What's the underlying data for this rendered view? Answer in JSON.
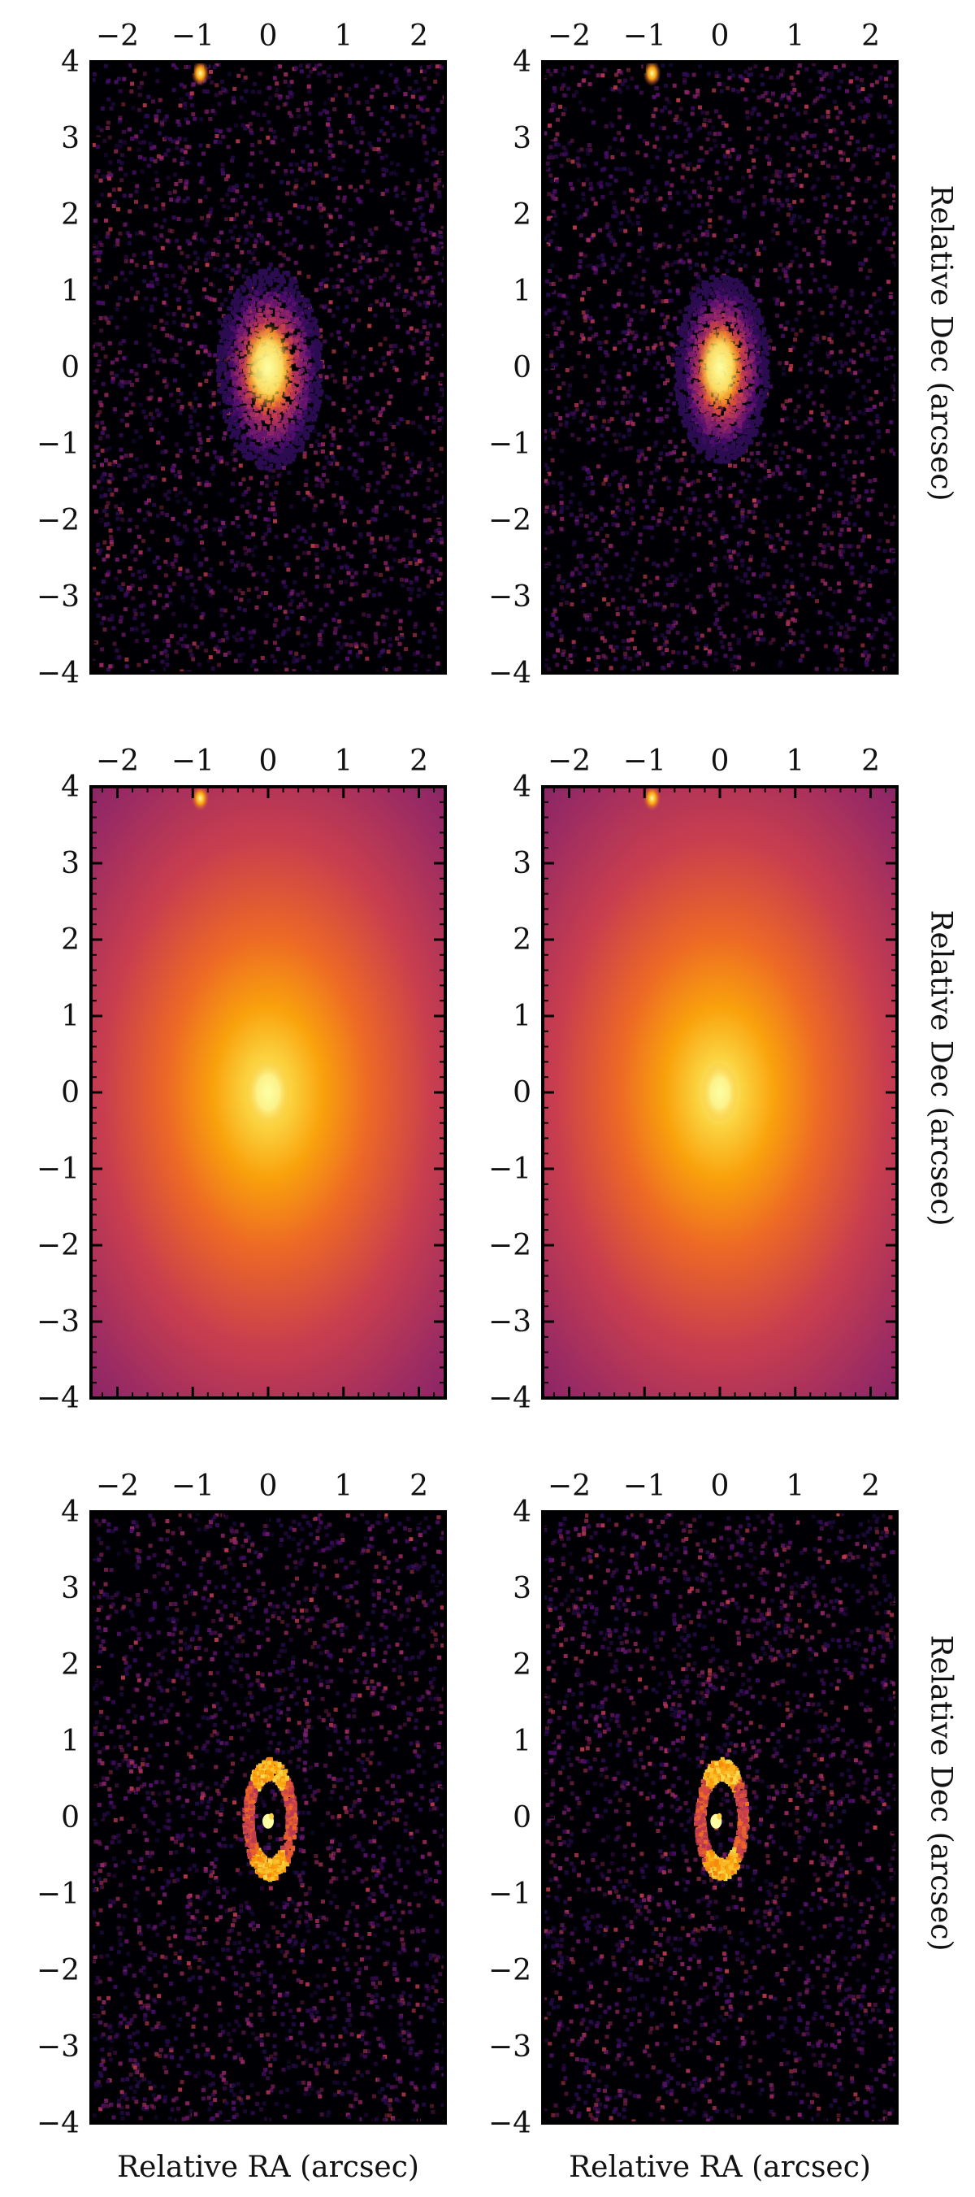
{
  "chart_data": {
    "type": "heatmap",
    "layout": "3 rows x 2 columns of sky images",
    "colormap": "inferno",
    "colormap_stops": [
      "#000004",
      "#1b0c41",
      "#4a0c6b",
      "#781c6d",
      "#a52c60",
      "#cf4446",
      "#ed6925",
      "#fb9b06",
      "#f7d13d",
      "#fcffa4"
    ],
    "x_axis": {
      "label": "Relative RA (arcsec)",
      "range": [
        -2.35,
        2.35
      ],
      "ticks": [
        -2,
        -1,
        0,
        1,
        2
      ],
      "tick_labels": [
        "−2",
        "−1",
        "0",
        "1",
        "2"
      ],
      "ticks_position": "top"
    },
    "y_axis": {
      "label": "Relative Dec (arcsec)",
      "range": [
        -4.0,
        4.0
      ],
      "ticks": [
        -4,
        -3,
        -2,
        -1,
        0,
        1,
        2,
        3,
        4
      ],
      "tick_labels": [
        "−4",
        "−3",
        "−2",
        "−1",
        "0",
        "1",
        "2",
        "3",
        "4"
      ],
      "ticks_position": "left"
    },
    "panels": [
      {
        "row": 1,
        "column": 1,
        "content": "noisy image",
        "source": {
          "x": 0.0,
          "y": 0.0,
          "semi_minor": 0.45,
          "semi_major": 0.85
        },
        "companion": {
          "x": -0.9,
          "y": 3.85
        }
      },
      {
        "row": 1,
        "column": 2,
        "content": "noisy image",
        "source": {
          "x": 0.0,
          "y": 0.0,
          "semi_minor": 0.4,
          "semi_major": 0.8
        },
        "companion": {
          "x": -0.9,
          "y": 3.85
        }
      },
      {
        "row": 2,
        "column": 1,
        "content": "smooth model",
        "source": {
          "x": 0.0,
          "y": 0.0,
          "semi_minor": 0.3,
          "semi_major": 0.45
        },
        "companion": {
          "x": -0.9,
          "y": 3.85
        }
      },
      {
        "row": 2,
        "column": 2,
        "content": "smooth model",
        "source": {
          "x": 0.0,
          "y": 0.0,
          "semi_minor": 0.25,
          "semi_major": 0.4
        },
        "companion": {
          "x": -0.9,
          "y": 3.85
        }
      },
      {
        "row": 3,
        "column": 1,
        "content": "residual ring",
        "ring": {
          "x": 0.0,
          "y": 0.0,
          "semi_minor": 0.35,
          "semi_major": 0.8
        },
        "core": {
          "x": 0.0,
          "y": -0.05
        }
      },
      {
        "row": 3,
        "column": 2,
        "content": "residual ring",
        "ring": {
          "x": 0.0,
          "y": 0.0,
          "semi_minor": 0.35,
          "semi_major": 0.8
        },
        "core": {
          "x": -0.05,
          "y": -0.05
        }
      }
    ]
  }
}
